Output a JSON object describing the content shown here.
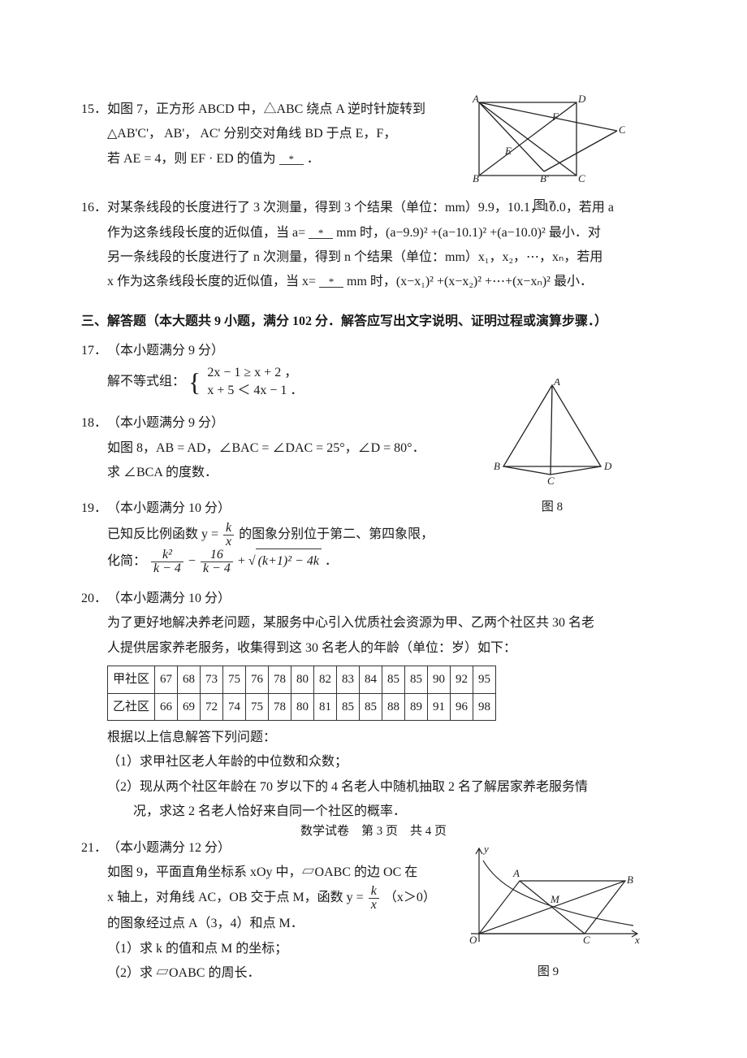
{
  "q15": {
    "num": "15．",
    "text_l1": "如图 7，正方形 ABCD 中，△ABC 绕点 A 逆时针旋转到",
    "text_l2": "△AB'C'， AB'， AC' 分别交对角线 BD 于点 E，F，",
    "text_l3_a": "若 AE = 4，则 EF · ED 的值为",
    "blank": "*",
    "text_l3_b": "．",
    "fig_label": "图 7",
    "labels": {
      "A": "A",
      "B": "B",
      "C": "C",
      "D": "D",
      "Bp": "B'",
      "Cp": "C'",
      "E": "E",
      "F": "F"
    }
  },
  "q16": {
    "num": "16．",
    "l1": "对某条线段的长度进行了 3 次测量，得到 3 个结果（单位：mm）9.9，10.1，10.0，若用 a",
    "l2a": "作为这条线段长度的近似值，当 a=",
    "blank1": "*",
    "l2b": "mm 时，(a−9.9)² +(a−10.1)² +(a−10.0)² 最小．对",
    "l3": "另一条线段的长度进行了 n 次测量，得到 n 个结果（单位：mm）x₁，x₂，⋯，xₙ，若用",
    "l4a": "x 作为这条线段长度的近似值，当 x=",
    "blank2": "*",
    "l4b": "mm 时，(x−x₁)² +(x−x₂)² +⋯+(x−xₙ)² 最小．"
  },
  "section3": "三、解答题（本大题共 9 小题，满分 102 分．解答应写出文字说明、证明过程或演算步骤．）",
  "q17": {
    "num": "17．",
    "title": "（本小题满分 9 分）",
    "lead": "解不等式组：",
    "sys1": "2x − 1 ≥ x + 2 ，",
    "sys2": "x + 5 ＜ 4x − 1 ．"
  },
  "q18": {
    "num": "18．",
    "title": "（本小题满分 9 分）",
    "l1": "如图 8，AB = AD，∠BAC = ∠DAC = 25°，∠D = 80°．",
    "l2": "求 ∠BCA 的度数．",
    "fig_label": "图 8",
    "labels": {
      "A": "A",
      "B": "B",
      "C": "C",
      "D": "D"
    }
  },
  "q19": {
    "num": "19．",
    "title": "（本小题满分 10 分）",
    "l1a": "已知反比例函数 y =",
    "frac_k": {
      "num": "k",
      "den": "x"
    },
    "l1b": "的图象分别位于第二、第四象限，",
    "l2a": "化简：",
    "f1": {
      "num": "k²",
      "den": "k − 4"
    },
    "minus": "−",
    "f2": {
      "num": "16",
      "den": "k − 4"
    },
    "plus": "+",
    "rad": "(k+1)² − 4k",
    "dot": "．"
  },
  "q20": {
    "num": "20．",
    "title": "（本小题满分 10 分）",
    "l1": "为了更好地解决养老问题，某服务中心引入优质社会资源为甲、乙两个社区共 30 名老",
    "l2": "人提供居家养老服务，收集得到这 30 名老人的年龄（单位：岁）如下：",
    "table": {
      "rows": [
        [
          "甲社区",
          "67",
          "68",
          "73",
          "75",
          "76",
          "78",
          "80",
          "82",
          "83",
          "84",
          "85",
          "85",
          "90",
          "92",
          "95"
        ],
        [
          "乙社区",
          "66",
          "69",
          "72",
          "74",
          "75",
          "78",
          "80",
          "81",
          "85",
          "85",
          "88",
          "89",
          "91",
          "96",
          "98"
        ]
      ]
    },
    "l3": "根据以上信息解答下列问题：",
    "p1": "（1）求甲社区老人年龄的中位数和众数；",
    "p2a": "（2）现从两个社区年龄在 70 岁以下的 4 名老人中随机抽取 2 名了解居家养老服务情",
    "p2b": "况，求这 2 名老人恰好来自同一个社区的概率．"
  },
  "q21": {
    "num": "21．",
    "title": "（本小题满分 12 分）",
    "l1": "如图 9，平面直角坐标系 xOy 中，▱OABC 的边 OC 在",
    "l2a": "x 轴上，对角线 AC，OB 交于点 M，函数 y =",
    "frac_k": {
      "num": "k",
      "den": "x"
    },
    "l2b": "（x＞0）",
    "l3": "的图象经过点 A（3，4）和点 M．",
    "p1": "（1）求 k 的值和点 M 的坐标；",
    "p2": "（2）求 ▱OABC 的周长．",
    "fig_label": "图 9",
    "labels": {
      "O": "O",
      "A": "A",
      "B": "B",
      "C": "C",
      "M": "M",
      "x": "x",
      "y": "y"
    }
  },
  "footer": "数学试卷　第 3 页　共 4 页"
}
